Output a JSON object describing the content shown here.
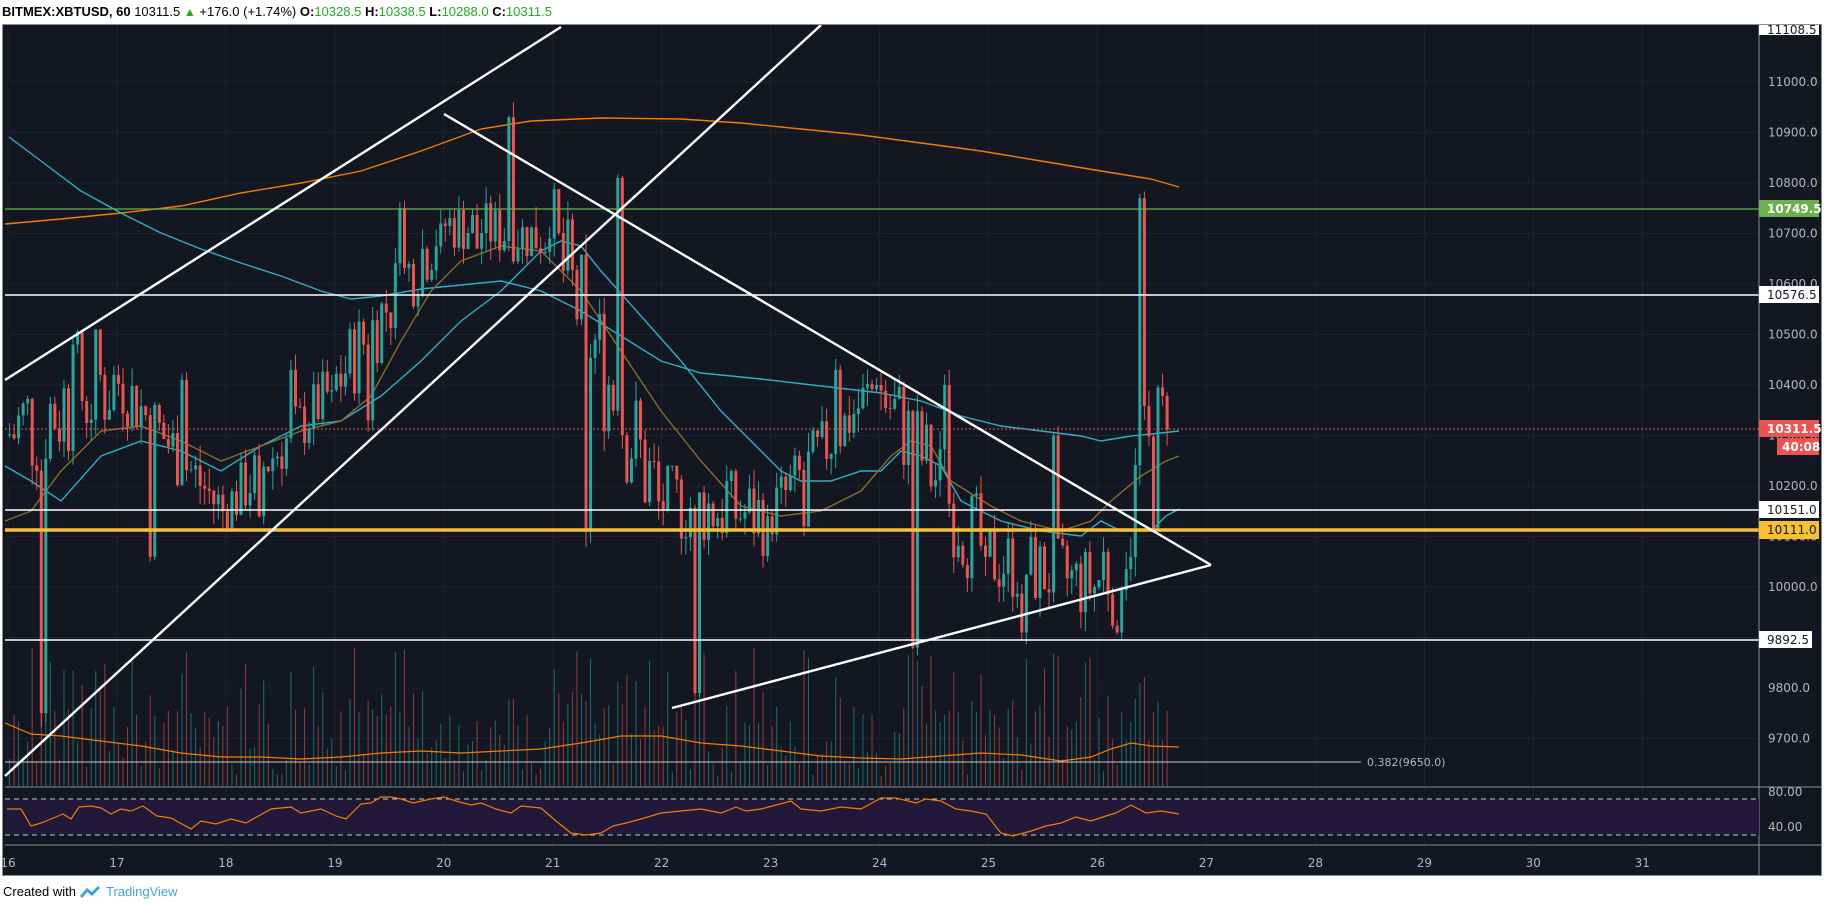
{
  "header": {
    "symbol": "BITMEX:XBTUSD, 60",
    "last": "10311.5",
    "change_icon": "triangle-up-icon",
    "change": "+176.0 (+1.74%)",
    "open_label": "O:",
    "open": "10328.5",
    "high_label": "H:",
    "high": "10338.5",
    "low_label": "L:",
    "low": "10288.0",
    "close_label": "C:",
    "close": "10311.5"
  },
  "footer": {
    "created_with": "Created with",
    "brand": "TradingView",
    "brand_icon": "tradingview-logo-icon"
  },
  "colors": {
    "background": "#131722",
    "up": "#26a69a",
    "down": "#ef5350",
    "ma_fast": "#f57c00",
    "ma_teal": "#2ab0c8",
    "ma_olive": "#8a6d2a",
    "resistance_green": "#6ab04c",
    "support_yellow": "#fbc02d",
    "rsi_band": "#21183a"
  },
  "chart_data": {
    "type": "candlestick",
    "title": "BITMEX:XBTUSD, 60",
    "xlabel": "",
    "ylabel": "",
    "x_ticks": [
      "16",
      "17",
      "18",
      "19",
      "20",
      "21",
      "22",
      "23",
      "24",
      "25",
      "26",
      "27",
      "28",
      "29",
      "30",
      "31"
    ],
    "y_ticks": [
      9700.0,
      9800.0,
      9900.0,
      10000.0,
      10100.0,
      10200.0,
      10300.0,
      10400.0,
      10500.0,
      10600.0,
      10700.0,
      10800.0,
      10900.0,
      11000.0
    ],
    "ylim": [
      9600,
      11110
    ],
    "grid": true,
    "price_labels": [
      {
        "value": "11108.5",
        "style": "white"
      },
      {
        "value": "10749.5",
        "style": "green"
      },
      {
        "value": "10576.5",
        "style": "white"
      },
      {
        "value": "10311.5",
        "style": "red-last"
      },
      {
        "value": "40:08",
        "style": "red-countdown"
      },
      {
        "value": "10151.0",
        "style": "white"
      },
      {
        "value": "10111.0",
        "style": "yellow"
      },
      {
        "value": "9892.5",
        "style": "white"
      }
    ],
    "horizontal_lines": [
      {
        "price": 10749.5,
        "color": "green"
      },
      {
        "price": 10576.5,
        "color": "white"
      },
      {
        "price": 10311.5,
        "color": "red-dotted"
      },
      {
        "price": 10151.0,
        "color": "white"
      },
      {
        "price": 10111.0,
        "color": "yellow"
      },
      {
        "price": 9892.5,
        "color": "white"
      }
    ],
    "fib_label": "0.382(9650.0)",
    "ohlc_daily_approx": [
      {
        "day": "16",
        "open": 10300,
        "high": 10510,
        "low": 9720,
        "close": 10420
      },
      {
        "day": "17",
        "open": 10420,
        "high": 10440,
        "low": 10030,
        "close": 10150
      },
      {
        "day": "18",
        "open": 10150,
        "high": 10460,
        "low": 10110,
        "close": 10390
      },
      {
        "day": "19",
        "open": 10390,
        "high": 10780,
        "low": 10300,
        "close": 10720
      },
      {
        "day": "20",
        "open": 10720,
        "high": 10960,
        "low": 10640,
        "close": 10690
      },
      {
        "day": "21",
        "open": 10690,
        "high": 10840,
        "low": 10080,
        "close": 10170
      },
      {
        "day": "22",
        "open": 10170,
        "high": 10240,
        "low": 9760,
        "close": 10140
      },
      {
        "day": "23",
        "open": 10140,
        "high": 10460,
        "low": 10090,
        "close": 10400
      },
      {
        "day": "24",
        "open": 10400,
        "high": 10430,
        "low": 9850,
        "close": 10060
      },
      {
        "day": "25",
        "open": 10060,
        "high": 10330,
        "low": 9880,
        "close": 10000
      },
      {
        "day": "26",
        "open": 10000,
        "high": 10800,
        "low": 9880,
        "close": 10311.5
      }
    ],
    "indicators": {
      "moving_averages": [
        "orange slow MA",
        "teal MA",
        "light teal MA",
        "olive MA"
      ],
      "volume": true,
      "rsi": {
        "upper": "80.00",
        "lower": "40.00",
        "band_upper": 70,
        "band_lower": 30
      }
    },
    "rsi_ticks": [
      "80.00",
      "40.00"
    ]
  }
}
